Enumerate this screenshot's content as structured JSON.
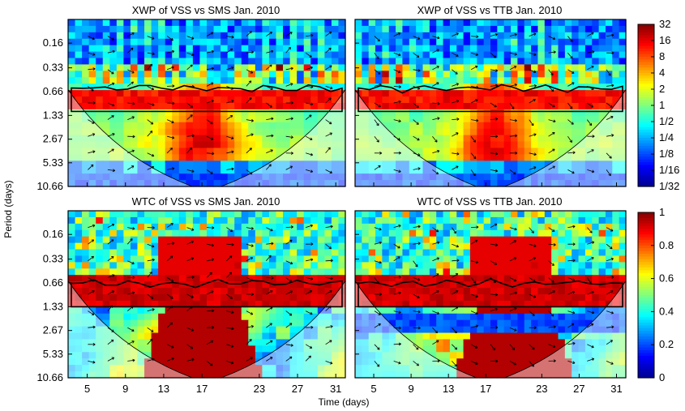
{
  "chart_data": {
    "type": "heatmap",
    "shared": {
      "ylabel": "Period (days)",
      "xlabel": "Time (days)",
      "x_ticks": [
        5,
        9,
        13,
        17,
        23,
        27,
        31
      ],
      "y_ticks": [
        "0.16",
        "0.33",
        "0.66",
        "1.33",
        "2.67",
        "5.33",
        "10.66"
      ],
      "xlim": [
        3,
        32
      ],
      "ylim_period_days": [
        0.08,
        10.66
      ],
      "y_scale": "log2"
    },
    "panels": [
      {
        "id": "xwp-sms",
        "title": "XWP of VSS vs SMS Jan. 2010",
        "kind": "xwp",
        "dominant_period_days": 0.8,
        "high_band_center": 17
      },
      {
        "id": "xwp-ttb",
        "title": "XWP of VSS vs TTB Jan. 2010",
        "kind": "xwp",
        "dominant_period_days": 0.8,
        "high_band_center": 18
      },
      {
        "id": "wtc-sms",
        "title": "WTC of VSS vs SMS Jan. 2010",
        "kind": "wtc",
        "dominant_period_days": 0.9,
        "high_band_center": 17
      },
      {
        "id": "wtc-ttb",
        "title": "WTC of VSS vs TTB Jan. 2010",
        "kind": "wtc",
        "dominant_period_days": 0.9,
        "high_band_center": 20
      }
    ],
    "colorbars": [
      {
        "id": "xwp-scale",
        "labels": [
          "32",
          "16",
          "8",
          "4",
          "2",
          "1",
          "1/2",
          "1/4",
          "1/8",
          "1/16",
          "1/32"
        ],
        "range": [
          0.03125,
          32
        ],
        "scale": "log2"
      },
      {
        "id": "wtc-scale",
        "labels": [
          "1",
          "0.8",
          "0.6",
          "0.4",
          "0.2",
          "0"
        ],
        "range": [
          0,
          1
        ],
        "scale": "linear"
      }
    ],
    "colormap": [
      "#00008f",
      "#0000ff",
      "#0080ff",
      "#00ffff",
      "#80ff80",
      "#ffff00",
      "#ff8000",
      "#ff0000",
      "#800000"
    ]
  }
}
